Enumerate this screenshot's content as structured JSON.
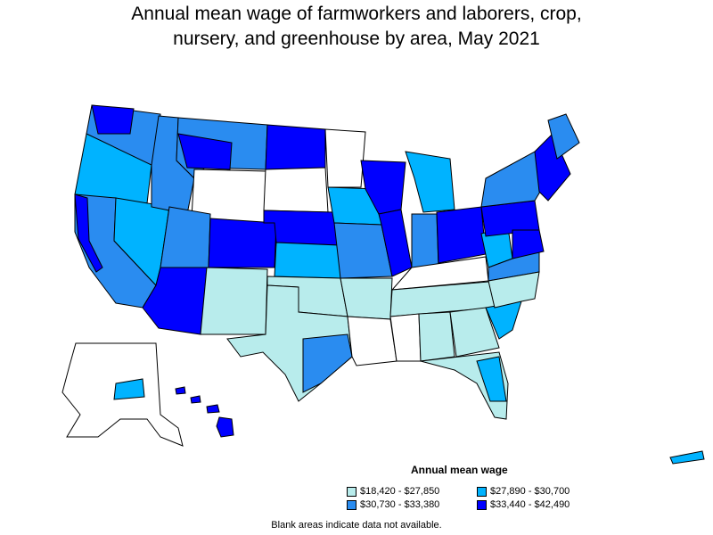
{
  "title": {
    "line1": "Annual mean wage of farmworkers and laborers, crop,",
    "line2": "nursery, and greenhouse by area, May 2021"
  },
  "legend": {
    "title": "Annual mean wage",
    "items": [
      {
        "label": "$18,420 - $27,850",
        "color": "#b8ecec"
      },
      {
        "label": "$27,890 - $30,700",
        "color": "#00b3ff"
      },
      {
        "label": "$30,730 - $33,380",
        "color": "#2a8cf0"
      },
      {
        "label": "$33,440 - $42,490",
        "color": "#0000ff"
      }
    ]
  },
  "note": "Blank areas indicate data not available.",
  "colors": {
    "blank": "#ffffff",
    "border": "#000000"
  }
}
